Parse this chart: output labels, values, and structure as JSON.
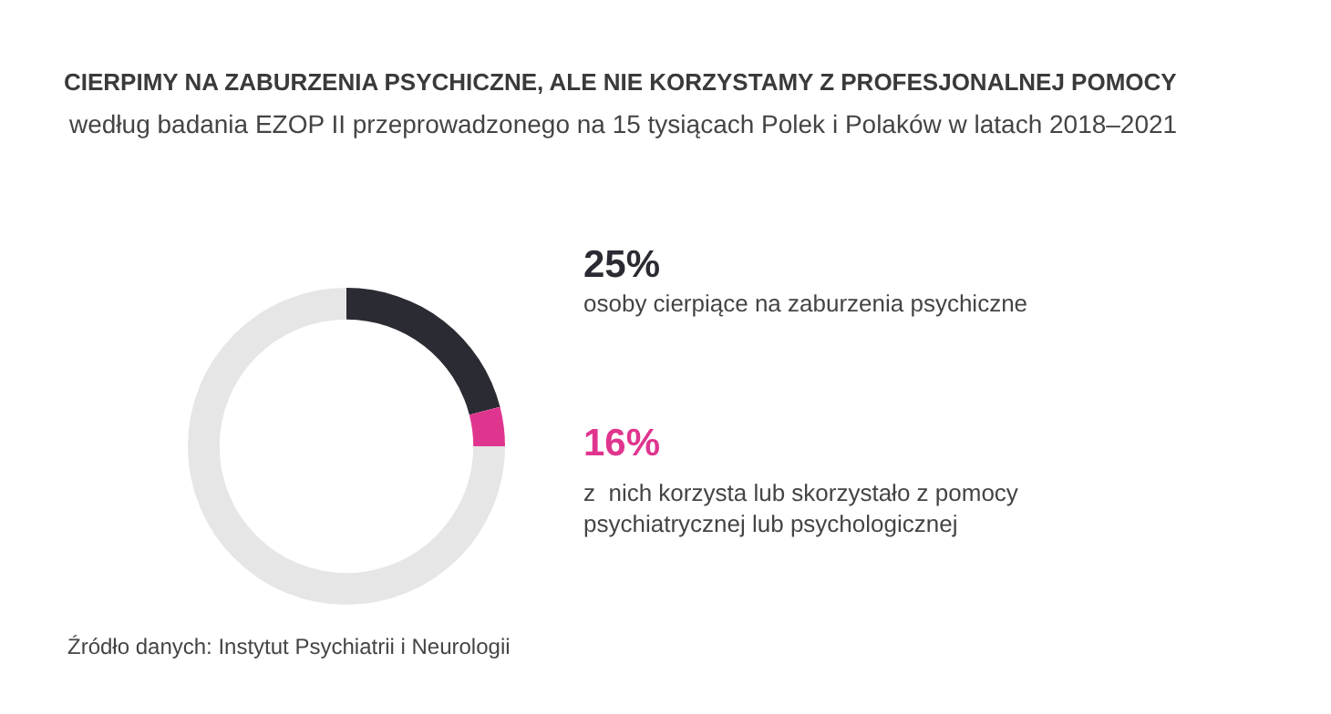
{
  "chart_data": {
    "type": "donut",
    "title": "CIERPIMY NA ZABURZENIA PSYCHICZNE, ALE NIE KORZYSTAMY Z PROFESJONALNEJ POMOCY",
    "subtitle": "według badania EZOP II przeprowadzonego na 15 tysiącach Polek i Polaków w latach 2018–2021",
    "categories": [
      null,
      null,
      null
    ],
    "values": [
      21,
      4,
      75
    ],
    "colors": [
      "#2b2b33",
      "#e0358f",
      "#e6e6e6"
    ],
    "annotations": [
      "25%",
      "osoby cierpiące na zaburzenia psychiczne",
      "16%",
      "z  nich korzysta lub skorzystało z pomocy\npsychiatrycznej lub psychologicznej",
      "Źródło danych: Instytut Psychiatrii i Neurologii"
    ],
    "legend": false
  }
}
